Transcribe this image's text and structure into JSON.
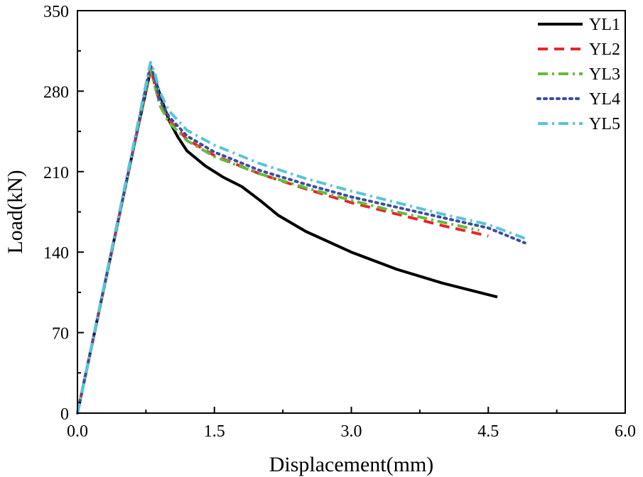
{
  "chart_data": {
    "type": "line",
    "title": "",
    "xlabel": "Displacement(mm)",
    "ylabel": "Load(kN)",
    "xlim": [
      0,
      6
    ],
    "ylim": [
      0,
      350
    ],
    "xticks": [
      0,
      1.5,
      3,
      4.5,
      6
    ],
    "xtick_labels": [
      "0.0",
      "1.5",
      "3.0",
      "4.5",
      "6.0"
    ],
    "yticks": [
      0,
      70,
      140,
      210,
      280,
      350
    ],
    "ytick_labels": [
      "0",
      "70",
      "140",
      "210",
      "280",
      "350"
    ],
    "grid": false,
    "legend_position": "top-right",
    "series": [
      {
        "name": "YL1",
        "color": "#000000",
        "dash": "solid",
        "x": [
          0,
          0.2,
          0.4,
          0.6,
          0.8,
          0.85,
          0.9,
          1.0,
          1.1,
          1.2,
          1.4,
          1.6,
          1.8,
          2.0,
          2.2,
          2.5,
          3.0,
          3.5,
          4.0,
          4.6
        ],
        "y": [
          0,
          75,
          150,
          225,
          298,
          290,
          278,
          255,
          240,
          228,
          215,
          205,
          197,
          185,
          172,
          158,
          140,
          125,
          113,
          101
        ]
      },
      {
        "name": "YL2",
        "color": "#e8262a",
        "dash": "dashed",
        "x": [
          0,
          0.2,
          0.4,
          0.6,
          0.8,
          0.85,
          0.9,
          1.0,
          1.2,
          1.5,
          2.0,
          2.5,
          3.0,
          3.5,
          4.0,
          4.5
        ],
        "y": [
          0,
          75,
          150,
          225,
          300,
          285,
          270,
          255,
          238,
          224,
          208,
          195,
          183,
          173,
          163,
          154
        ]
      },
      {
        "name": "YL3",
        "color": "#66bb3a",
        "dash": "dashdot",
        "x": [
          0,
          0.2,
          0.4,
          0.6,
          0.8,
          0.85,
          0.9,
          1.0,
          1.2,
          1.5,
          2.0,
          2.5,
          3.0,
          3.5,
          4.0,
          4.4
        ],
        "y": [
          0,
          75,
          150,
          225,
          300,
          284,
          268,
          253,
          237,
          223,
          208,
          196,
          185,
          175,
          166,
          159
        ]
      },
      {
        "name": "YL4",
        "color": "#3a4ea0",
        "dash": "dotted",
        "x": [
          0,
          0.2,
          0.4,
          0.6,
          0.8,
          0.85,
          0.9,
          1.0,
          1.2,
          1.5,
          2.0,
          2.5,
          3.0,
          3.5,
          4.0,
          4.5,
          4.9
        ],
        "y": [
          0,
          75,
          150,
          225,
          303,
          290,
          273,
          258,
          241,
          227,
          211,
          199,
          188,
          179,
          170,
          161,
          148
        ]
      },
      {
        "name": "YL5",
        "color": "#5bc4d6",
        "dash": "dashdot",
        "x": [
          0,
          0.2,
          0.4,
          0.6,
          0.8,
          0.85,
          0.9,
          1.0,
          1.2,
          1.5,
          2.0,
          2.5,
          3.0,
          3.5,
          4.0,
          4.5,
          4.9
        ],
        "y": [
          0,
          76,
          152,
          228,
          305,
          295,
          280,
          263,
          246,
          233,
          217,
          204,
          193,
          183,
          173,
          164,
          152
        ]
      }
    ]
  }
}
